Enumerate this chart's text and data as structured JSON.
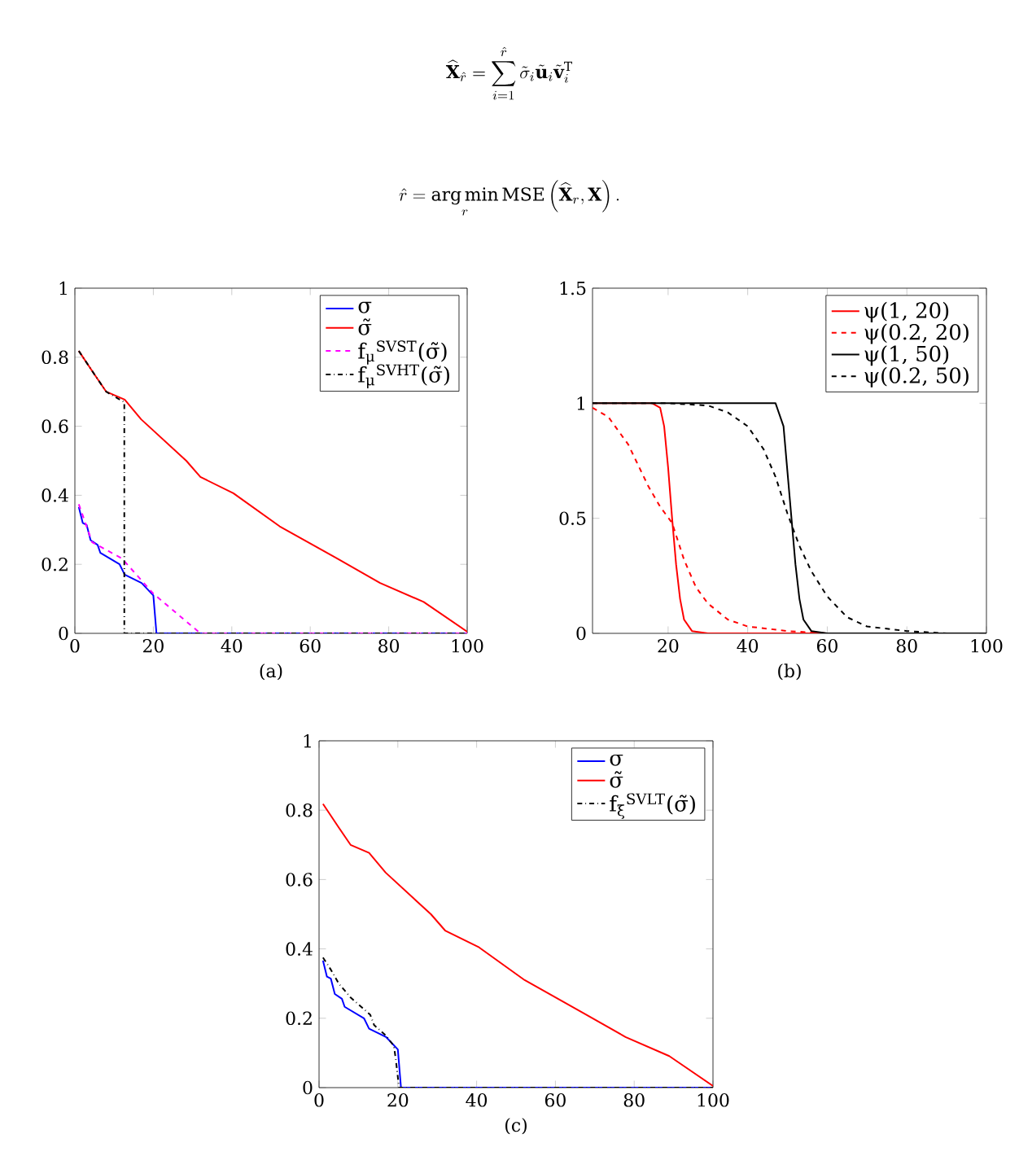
{
  "chart_data": [
    {
      "type": "line",
      "xlabel": "(a)",
      "xlim": [
        0,
        100
      ],
      "ylim": [
        0,
        1
      ],
      "xticks": [
        0,
        20,
        40,
        60,
        80,
        100
      ],
      "yticks": [
        0,
        0.2,
        0.4,
        0.6,
        0.8,
        1
      ],
      "legend": "top right",
      "annotations": [
        "\\widehat{\\mathbf{X}}_{\\hat r}=\\sum_{i=1}^{\\hat r}\\tilde\\sigma_i\\tilde{\\mathbf u}_i\\tilde{\\mathbf v}_i^{\\mathrm T}",
        "\\hat r=\\mathop{\\arg\\min}\\limits_r \\mathrm{MSE}\\left(\\widehat{\\mathbf X}_r,\\mathbf X\\right)."
      ],
      "series": [
        {
          "name": "σ",
          "color": "#0000ff",
          "line_style": "solid",
          "x": [
            1,
            2,
            3,
            4,
            5.8,
            6.5,
            11.4,
            12.7,
            17,
            20,
            20.8,
            100
          ],
          "values": [
            0.366,
            0.32,
            0.314,
            0.27,
            0.256,
            0.233,
            0.2,
            0.17,
            0.146,
            0.11,
            0,
            0
          ]
        },
        {
          "name": "σ̃",
          "color": "#ff0000",
          "line_style": "solid",
          "x": [
            1,
            5,
            8,
            12.7,
            16.9,
            28.4,
            32,
            40.4,
            52.2,
            66.8,
            77.8,
            88.9,
            100
          ],
          "values": [
            0.818,
            0.75,
            0.7,
            0.677,
            0.62,
            0.5,
            0.453,
            0.406,
            0.31,
            0.217,
            0.146,
            0.091,
            0.005
          ]
        },
        {
          "name": "f$_{μ}$$^{SVST}$(σ̃)",
          "color": "#ff00ff",
          "line_style": "dashed",
          "x": [
            1,
            4.4,
            12,
            20,
            32,
            100
          ],
          "values": [
            0.374,
            0.264,
            0.217,
            0.115,
            0,
            0
          ]
        },
        {
          "name": "f$_{μ}$$^{SVHT}$(σ̃)",
          "color": "#000000",
          "line_style": "dashdot",
          "x": [
            1,
            5,
            8,
            11,
            12.6,
            12.6,
            100
          ],
          "values": [
            0.818,
            0.75,
            0.7,
            0.68,
            0.67,
            0,
            0
          ]
        }
      ]
    },
    {
      "type": "line",
      "xlabel": "(b)",
      "xlim": [
        1,
        100
      ],
      "ylim": [
        0,
        1.5
      ],
      "xticks": [
        20,
        40,
        60,
        80,
        100
      ],
      "yticks": [
        0,
        0.5,
        1,
        1.5
      ],
      "legend": "top right",
      "series": [
        {
          "name": "ψ(1, 20)",
          "color": "#ff0000",
          "line_style": "solid",
          "x": [
            1,
            16,
            18,
            19,
            20,
            21,
            22,
            23,
            24,
            26,
            30,
            100
          ],
          "values": [
            1,
            1,
            0.98,
            0.9,
            0.72,
            0.5,
            0.3,
            0.15,
            0.06,
            0.01,
            0,
            0
          ]
        },
        {
          "name": "ψ(0.2, 20)",
          "color": "#ff0000",
          "line_style": "dashed",
          "x": [
            1,
            5,
            10,
            15,
            18,
            21,
            24,
            27,
            30,
            35,
            40,
            50,
            60,
            100
          ],
          "values": [
            0.98,
            0.94,
            0.82,
            0.64,
            0.55,
            0.48,
            0.32,
            0.2,
            0.13,
            0.06,
            0.03,
            0.01,
            0,
            0
          ]
        },
        {
          "name": "ψ(1, 50)",
          "color": "#000000",
          "line_style": "solid",
          "x": [
            1,
            47,
            49,
            50,
            51,
            52,
            53,
            54,
            56,
            60,
            100
          ],
          "values": [
            1,
            1,
            0.9,
            0.7,
            0.5,
            0.3,
            0.15,
            0.06,
            0.01,
            0,
            0
          ]
        },
        {
          "name": "ψ(0.2, 50)",
          "color": "#000000",
          "line_style": "dashed",
          "x": [
            1,
            20,
            30,
            35,
            40,
            44,
            47,
            50,
            53,
            56,
            60,
            65,
            70,
            80,
            90,
            100
          ],
          "values": [
            1,
            1,
            0.99,
            0.96,
            0.9,
            0.8,
            0.68,
            0.52,
            0.38,
            0.27,
            0.16,
            0.07,
            0.03,
            0.01,
            0,
            0
          ]
        }
      ]
    },
    {
      "type": "line",
      "xlabel": "(c)",
      "xlim": [
        0,
        100
      ],
      "ylim": [
        0,
        1
      ],
      "xticks": [
        0,
        20,
        40,
        60,
        80,
        100
      ],
      "yticks": [
        0,
        0.2,
        0.4,
        0.6,
        0.8,
        1
      ],
      "legend": "top right",
      "series": [
        {
          "name": "σ",
          "color": "#0000ff",
          "line_style": "solid",
          "x": [
            1,
            2,
            3,
            4,
            5.8,
            6.5,
            11.4,
            12.7,
            17,
            20,
            20.8,
            100
          ],
          "values": [
            0.366,
            0.32,
            0.314,
            0.27,
            0.256,
            0.233,
            0.2,
            0.17,
            0.146,
            0.11,
            0,
            0
          ]
        },
        {
          "name": "σ̃",
          "color": "#ff0000",
          "line_style": "solid",
          "x": [
            1,
            5,
            8,
            12.7,
            16.9,
            28.4,
            32,
            40.4,
            52.2,
            66.8,
            77.8,
            88.9,
            100
          ],
          "values": [
            0.818,
            0.75,
            0.7,
            0.677,
            0.62,
            0.5,
            0.453,
            0.406,
            0.31,
            0.217,
            0.146,
            0.091,
            0.005
          ]
        },
        {
          "name": "f$_{ξ}$$^{SVLT}$(σ̃)",
          "color": "#000000",
          "line_style": "dashdot",
          "x": [
            1,
            3,
            5,
            8,
            11,
            13,
            14,
            17,
            19,
            19.5,
            20,
            20.3,
            100
          ],
          "values": [
            0.375,
            0.34,
            0.3,
            0.26,
            0.23,
            0.21,
            0.18,
            0.15,
            0.12,
            0.08,
            0.03,
            0,
            0
          ]
        }
      ]
    }
  ]
}
